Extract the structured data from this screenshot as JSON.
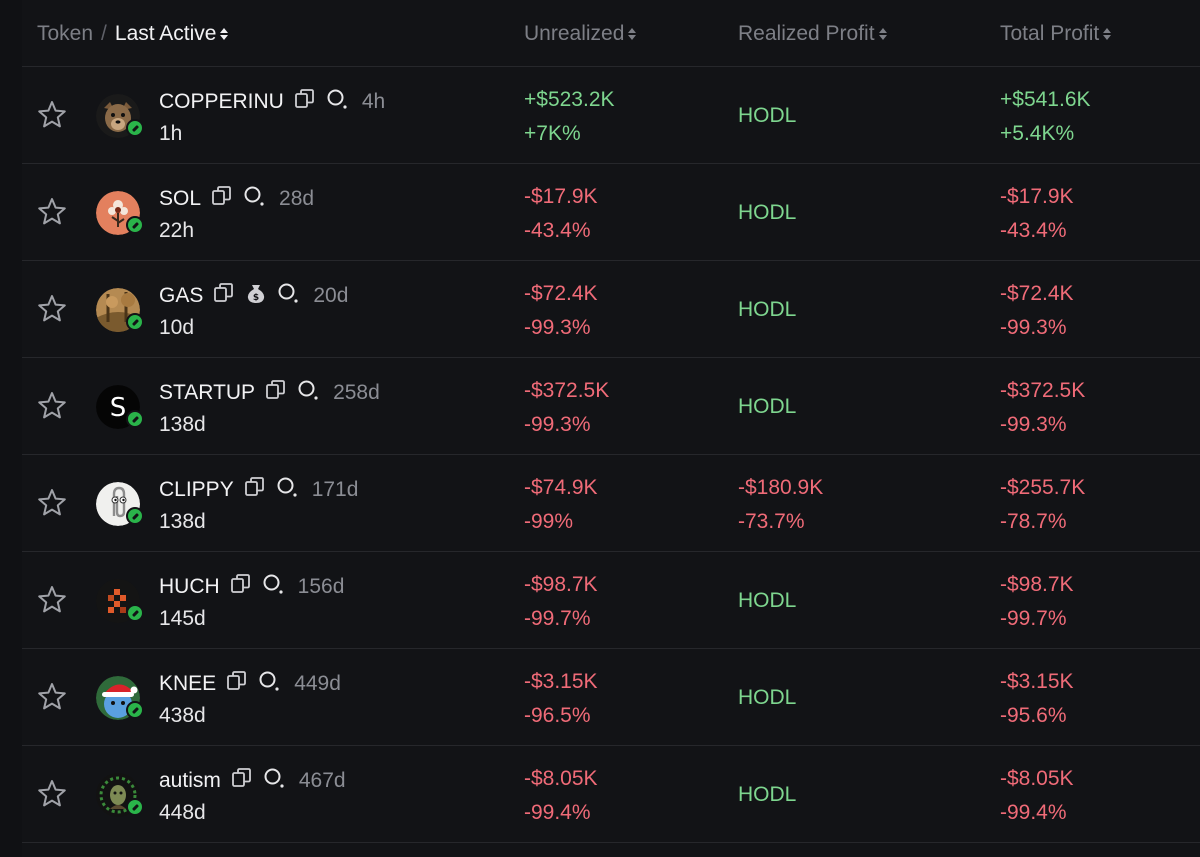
{
  "header": {
    "token_label": "Token",
    "separator": "/",
    "last_active_label": "Last Active",
    "unrealized_label": "Unrealized",
    "realized_label": "Realized Profit",
    "total_label": "Total Profit"
  },
  "colors": {
    "positive": "#7ed68f",
    "negative": "#f06b78",
    "badge": "#2ab44a",
    "background": "#121316"
  },
  "rows": [
    {
      "name": "COPPERINU",
      "age": "4h",
      "last_active": "1h",
      "unrealized_value": "+$523.2K",
      "unrealized_pct": "+7K%",
      "unrealized_sign": "pos",
      "realized_value": "HODL",
      "realized_pct": "",
      "realized_sign": "hodl",
      "total_value": "+$541.6K",
      "total_pct": "+5.4K%",
      "total_sign": "pos",
      "avatar": "wolf-avatar",
      "has_bag": false
    },
    {
      "name": "SOL",
      "age": "28d",
      "last_active": "22h",
      "unrealized_value": "-$17.9K",
      "unrealized_pct": "-43.4%",
      "unrealized_sign": "neg",
      "realized_value": "HODL",
      "realized_pct": "",
      "realized_sign": "hodl",
      "total_value": "-$17.9K",
      "total_pct": "-43.4%",
      "total_sign": "neg",
      "avatar": "flower-avatar",
      "has_bag": false
    },
    {
      "name": "GAS",
      "age": "20d",
      "last_active": "10d",
      "unrealized_value": "-$72.4K",
      "unrealized_pct": "-99.3%",
      "unrealized_sign": "neg",
      "realized_value": "HODL",
      "realized_pct": "",
      "realized_sign": "hodl",
      "total_value": "-$72.4K",
      "total_pct": "-99.3%",
      "total_sign": "neg",
      "avatar": "forest-avatar",
      "has_bag": true
    },
    {
      "name": "STARTUP",
      "age": "258d",
      "last_active": "138d",
      "unrealized_value": "-$372.5K",
      "unrealized_pct": "-99.3%",
      "unrealized_sign": "neg",
      "realized_value": "HODL",
      "realized_pct": "",
      "realized_sign": "hodl",
      "total_value": "-$372.5K",
      "total_pct": "-99.3%",
      "total_sign": "neg",
      "avatar": "s-logo-avatar",
      "has_bag": false
    },
    {
      "name": "CLIPPY",
      "age": "171d",
      "last_active": "138d",
      "unrealized_value": "-$74.9K",
      "unrealized_pct": "-99%",
      "unrealized_sign": "neg",
      "realized_value": "-$180.9K",
      "realized_pct": "-73.7%",
      "realized_sign": "neg",
      "total_value": "-$255.7K",
      "total_pct": "-78.7%",
      "total_sign": "neg",
      "avatar": "paperclip-avatar",
      "has_bag": false
    },
    {
      "name": "HUCH",
      "age": "156d",
      "last_active": "145d",
      "unrealized_value": "-$98.7K",
      "unrealized_pct": "-99.7%",
      "unrealized_sign": "neg",
      "realized_value": "HODL",
      "realized_pct": "",
      "realized_sign": "hodl",
      "total_value": "-$98.7K",
      "total_pct": "-99.7%",
      "total_sign": "neg",
      "avatar": "pixel-avatar",
      "has_bag": false
    },
    {
      "name": "KNEE",
      "age": "449d",
      "last_active": "438d",
      "unrealized_value": "-$3.15K",
      "unrealized_pct": "-96.5%",
      "unrealized_sign": "neg",
      "realized_value": "HODL",
      "realized_pct": "",
      "realized_sign": "hodl",
      "total_value": "-$3.15K",
      "total_pct": "-95.6%",
      "total_sign": "neg",
      "avatar": "santa-hat-avatar",
      "has_bag": false
    },
    {
      "name": "autism",
      "age": "467d",
      "last_active": "448d",
      "unrealized_value": "-$8.05K",
      "unrealized_pct": "-99.4%",
      "unrealized_sign": "neg",
      "realized_value": "HODL",
      "realized_pct": "",
      "realized_sign": "hodl",
      "total_value": "-$8.05K",
      "total_pct": "-99.4%",
      "total_sign": "neg",
      "avatar": "portrait-avatar",
      "has_bag": false
    }
  ]
}
